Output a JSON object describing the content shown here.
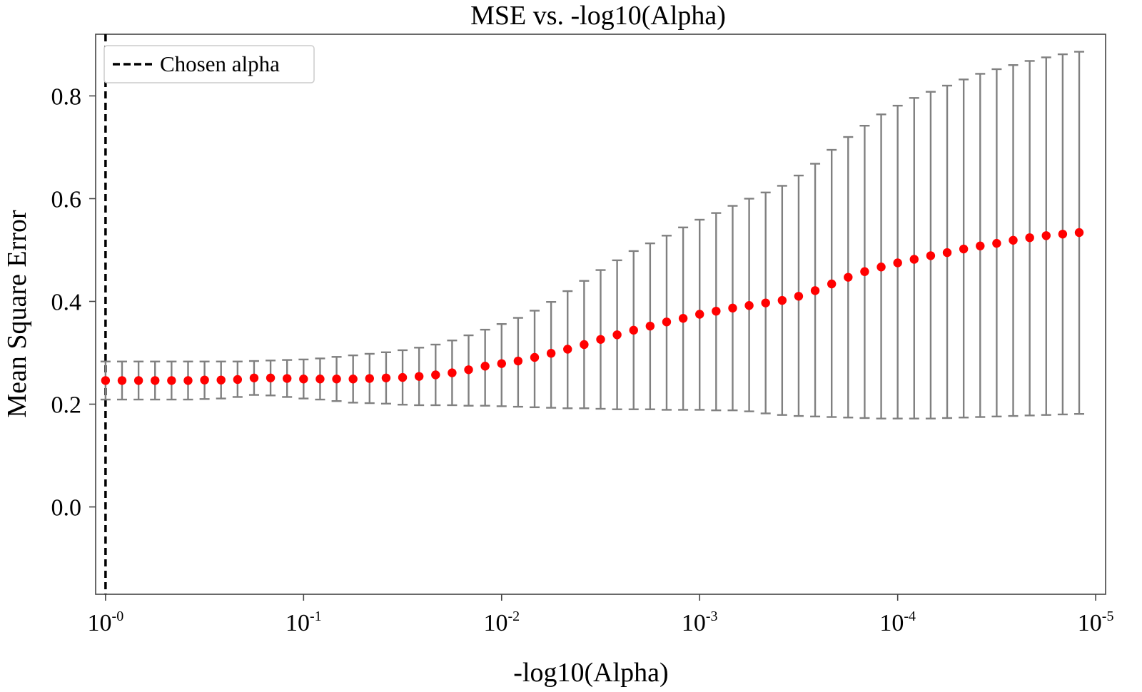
{
  "chart_data": {
    "type": "scatter",
    "title": "MSE vs. -log10(Alpha)",
    "xlabel": "-log10(Alpha)",
    "ylabel": "Mean Square Error",
    "xlim": [
      -0.05,
      5.05
    ],
    "ylim": [
      -0.17,
      0.92
    ],
    "x_ticks": [
      {
        "value": 0,
        "base": "10",
        "exp": "-0"
      },
      {
        "value": 1,
        "base": "10",
        "exp": "-1"
      },
      {
        "value": 2,
        "base": "10",
        "exp": "-2"
      },
      {
        "value": 3,
        "base": "10",
        "exp": "-3"
      },
      {
        "value": 4,
        "base": "10",
        "exp": "-4"
      },
      {
        "value": 5,
        "base": "10",
        "exp": "-5"
      }
    ],
    "y_ticks": [
      {
        "value": 0.0,
        "label": "0.0"
      },
      {
        "value": 0.2,
        "label": "0.2"
      },
      {
        "value": 0.4,
        "label": "0.4"
      },
      {
        "value": 0.6,
        "label": "0.6"
      },
      {
        "value": 0.8,
        "label": "0.8"
      }
    ],
    "chosen_alpha_x": 0,
    "legend": {
      "label": "Chosen alpha",
      "location": "upper left"
    },
    "grid": false,
    "colors": {
      "points": "#ff0000",
      "errorbars": "#808080",
      "chosen_line": "#000000"
    },
    "x": [
      0.0,
      0.0833,
      0.1667,
      0.25,
      0.3333,
      0.4167,
      0.5,
      0.5833,
      0.6667,
      0.75,
      0.8333,
      0.9167,
      1.0,
      1.0833,
      1.1667,
      1.25,
      1.3333,
      1.4167,
      1.5,
      1.5833,
      1.6667,
      1.75,
      1.8333,
      1.9167,
      2.0,
      2.0833,
      2.1667,
      2.25,
      2.3333,
      2.4167,
      2.5,
      2.5833,
      2.6667,
      2.75,
      2.8333,
      2.9167,
      3.0,
      3.0833,
      3.1667,
      3.25,
      3.3333,
      3.4167,
      3.5,
      3.5833,
      3.6667,
      3.75,
      3.8333,
      3.9167,
      4.0,
      4.0833,
      4.1667,
      4.25,
      4.3333,
      4.4167,
      4.5,
      4.5833,
      4.6667,
      4.75,
      4.8333,
      4.9167
    ],
    "mse": [
      0.246,
      0.246,
      0.246,
      0.246,
      0.246,
      0.246,
      0.247,
      0.247,
      0.248,
      0.251,
      0.251,
      0.25,
      0.249,
      0.249,
      0.249,
      0.249,
      0.25,
      0.251,
      0.252,
      0.254,
      0.257,
      0.261,
      0.267,
      0.274,
      0.279,
      0.284,
      0.291,
      0.299,
      0.307,
      0.316,
      0.326,
      0.335,
      0.344,
      0.352,
      0.36,
      0.367,
      0.375,
      0.381,
      0.387,
      0.392,
      0.397,
      0.402,
      0.41,
      0.421,
      0.434,
      0.447,
      0.458,
      0.467,
      0.475,
      0.482,
      0.489,
      0.495,
      0.502,
      0.508,
      0.513,
      0.519,
      0.524,
      0.528,
      0.531,
      0.534
    ],
    "err_upper": [
      0.283,
      0.283,
      0.283,
      0.283,
      0.283,
      0.283,
      0.283,
      0.283,
      0.283,
      0.284,
      0.285,
      0.286,
      0.287,
      0.289,
      0.292,
      0.295,
      0.298,
      0.301,
      0.305,
      0.31,
      0.316,
      0.324,
      0.334,
      0.345,
      0.356,
      0.368,
      0.382,
      0.399,
      0.42,
      0.44,
      0.461,
      0.48,
      0.498,
      0.513,
      0.528,
      0.544,
      0.559,
      0.572,
      0.586,
      0.6,
      0.612,
      0.625,
      0.645,
      0.668,
      0.695,
      0.72,
      0.742,
      0.764,
      0.781,
      0.796,
      0.808,
      0.82,
      0.832,
      0.843,
      0.852,
      0.86,
      0.868,
      0.875,
      0.881,
      0.886
    ],
    "err_lower": [
      0.209,
      0.209,
      0.209,
      0.209,
      0.209,
      0.209,
      0.21,
      0.211,
      0.214,
      0.218,
      0.217,
      0.214,
      0.211,
      0.209,
      0.206,
      0.203,
      0.202,
      0.201,
      0.199,
      0.198,
      0.198,
      0.198,
      0.197,
      0.197,
      0.196,
      0.195,
      0.194,
      0.193,
      0.192,
      0.192,
      0.191,
      0.19,
      0.19,
      0.19,
      0.189,
      0.189,
      0.189,
      0.188,
      0.188,
      0.186,
      0.182,
      0.179,
      0.177,
      0.176,
      0.175,
      0.174,
      0.173,
      0.172,
      0.172,
      0.172,
      0.172,
      0.173,
      0.174,
      0.175,
      0.176,
      0.177,
      0.178,
      0.179,
      0.18,
      0.181
    ]
  }
}
